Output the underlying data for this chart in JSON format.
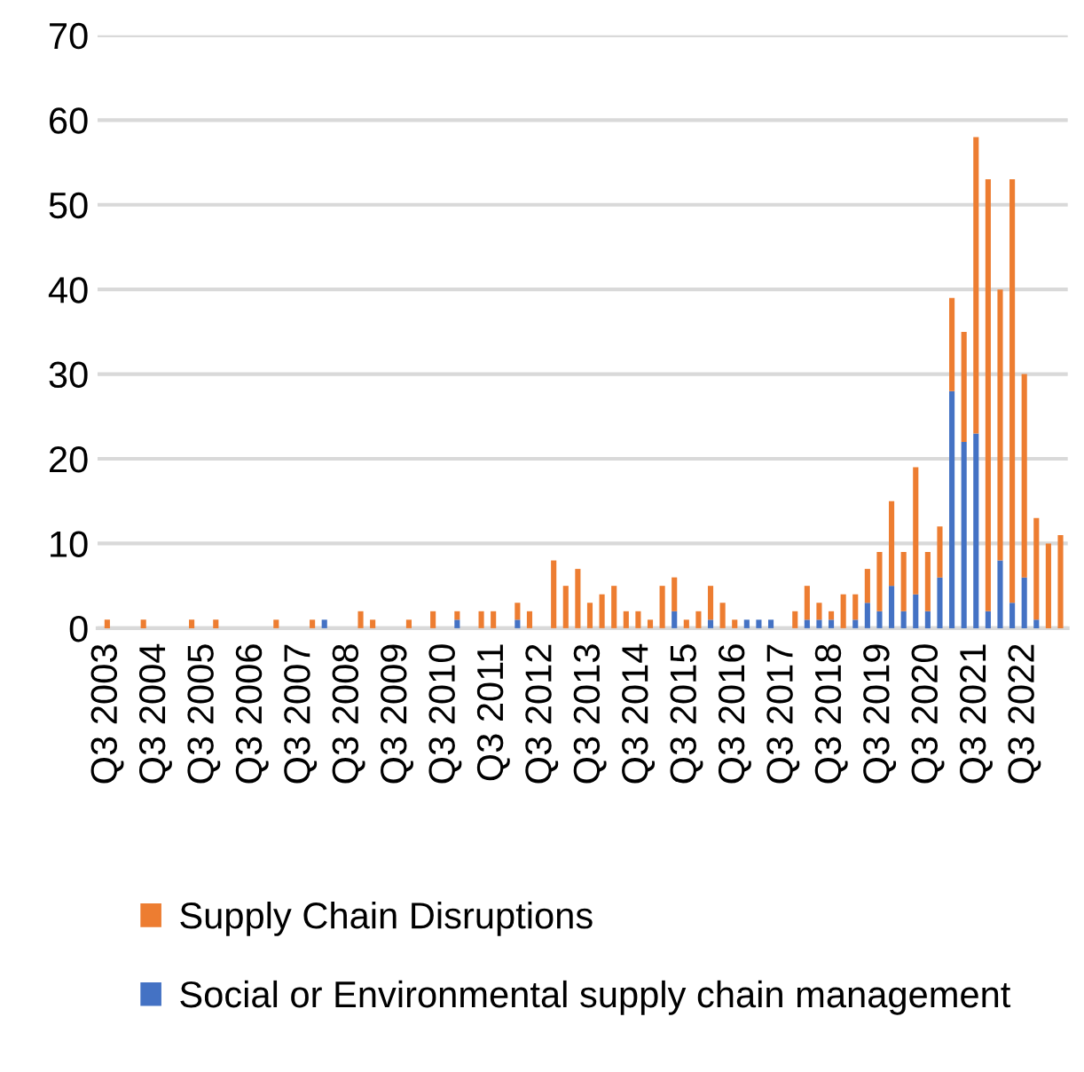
{
  "chart_data": {
    "type": "bar",
    "stacked": true,
    "categories": [
      "Q3 2003",
      null,
      null,
      null,
      "Q3 2004",
      null,
      null,
      null,
      "Q3 2005",
      null,
      null,
      null,
      "Q3 2006",
      null,
      null,
      null,
      "Q3 2007",
      null,
      null,
      null,
      "Q3 2008",
      null,
      null,
      null,
      "Q3 2009",
      null,
      null,
      null,
      "Q3 2010",
      null,
      null,
      null,
      "Q3 2011",
      null,
      null,
      null,
      "Q3 2012",
      null,
      null,
      null,
      "Q3 2013",
      null,
      null,
      null,
      "Q3 2014",
      null,
      null,
      null,
      "Q3 2015",
      null,
      null,
      null,
      "Q3 2016",
      null,
      null,
      null,
      "Q3 2017",
      null,
      null,
      null,
      "Q3 2018",
      null,
      null,
      null,
      "Q3 2019",
      null,
      null,
      null,
      "Q3 2020",
      null,
      null,
      null,
      "Q3 2021",
      null,
      null,
      null,
      "Q3 2022",
      null,
      null,
      null
    ],
    "series": [
      {
        "name": "Social or Environmental supply chain management",
        "color": "#4472c4",
        "values": [
          0,
          0,
          0,
          0,
          0,
          0,
          0,
          0,
          0,
          0,
          0,
          0,
          0,
          0,
          0,
          0,
          0,
          0,
          1,
          0,
          0,
          0,
          0,
          0,
          0,
          0,
          0,
          0,
          0,
          1,
          0,
          0,
          0,
          0,
          1,
          0,
          0,
          0,
          0,
          0,
          0,
          0,
          0,
          0,
          0,
          0,
          0,
          2,
          0,
          0,
          1,
          0,
          0,
          1,
          1,
          1,
          0,
          0,
          1,
          1,
          1,
          0,
          1,
          3,
          2,
          5,
          2,
          4,
          2,
          6,
          28,
          22,
          23,
          2,
          8,
          3,
          6,
          1,
          0,
          0
        ]
      },
      {
        "name": "Supply Chain Disruptions",
        "color": "#ed7d31",
        "values": [
          1,
          0,
          0,
          1,
          0,
          0,
          0,
          1,
          0,
          1,
          0,
          0,
          0,
          0,
          1,
          0,
          0,
          1,
          0,
          0,
          0,
          2,
          1,
          0,
          0,
          1,
          0,
          2,
          0,
          1,
          0,
          2,
          2,
          0,
          2,
          2,
          0,
          8,
          5,
          7,
          3,
          4,
          5,
          2,
          2,
          1,
          5,
          4,
          1,
          2,
          4,
          3,
          1,
          0,
          0,
          0,
          0,
          2,
          4,
          2,
          1,
          4,
          3,
          4,
          7,
          10,
          7,
          15,
          7,
          6,
          11,
          13,
          35,
          51,
          32,
          50,
          24,
          12,
          10,
          11
        ]
      }
    ],
    "ylim": [
      0,
      70
    ],
    "yticks": [
      0,
      10,
      20,
      30,
      40,
      50,
      60,
      70
    ],
    "grid": "y",
    "legend": "bottom"
  }
}
